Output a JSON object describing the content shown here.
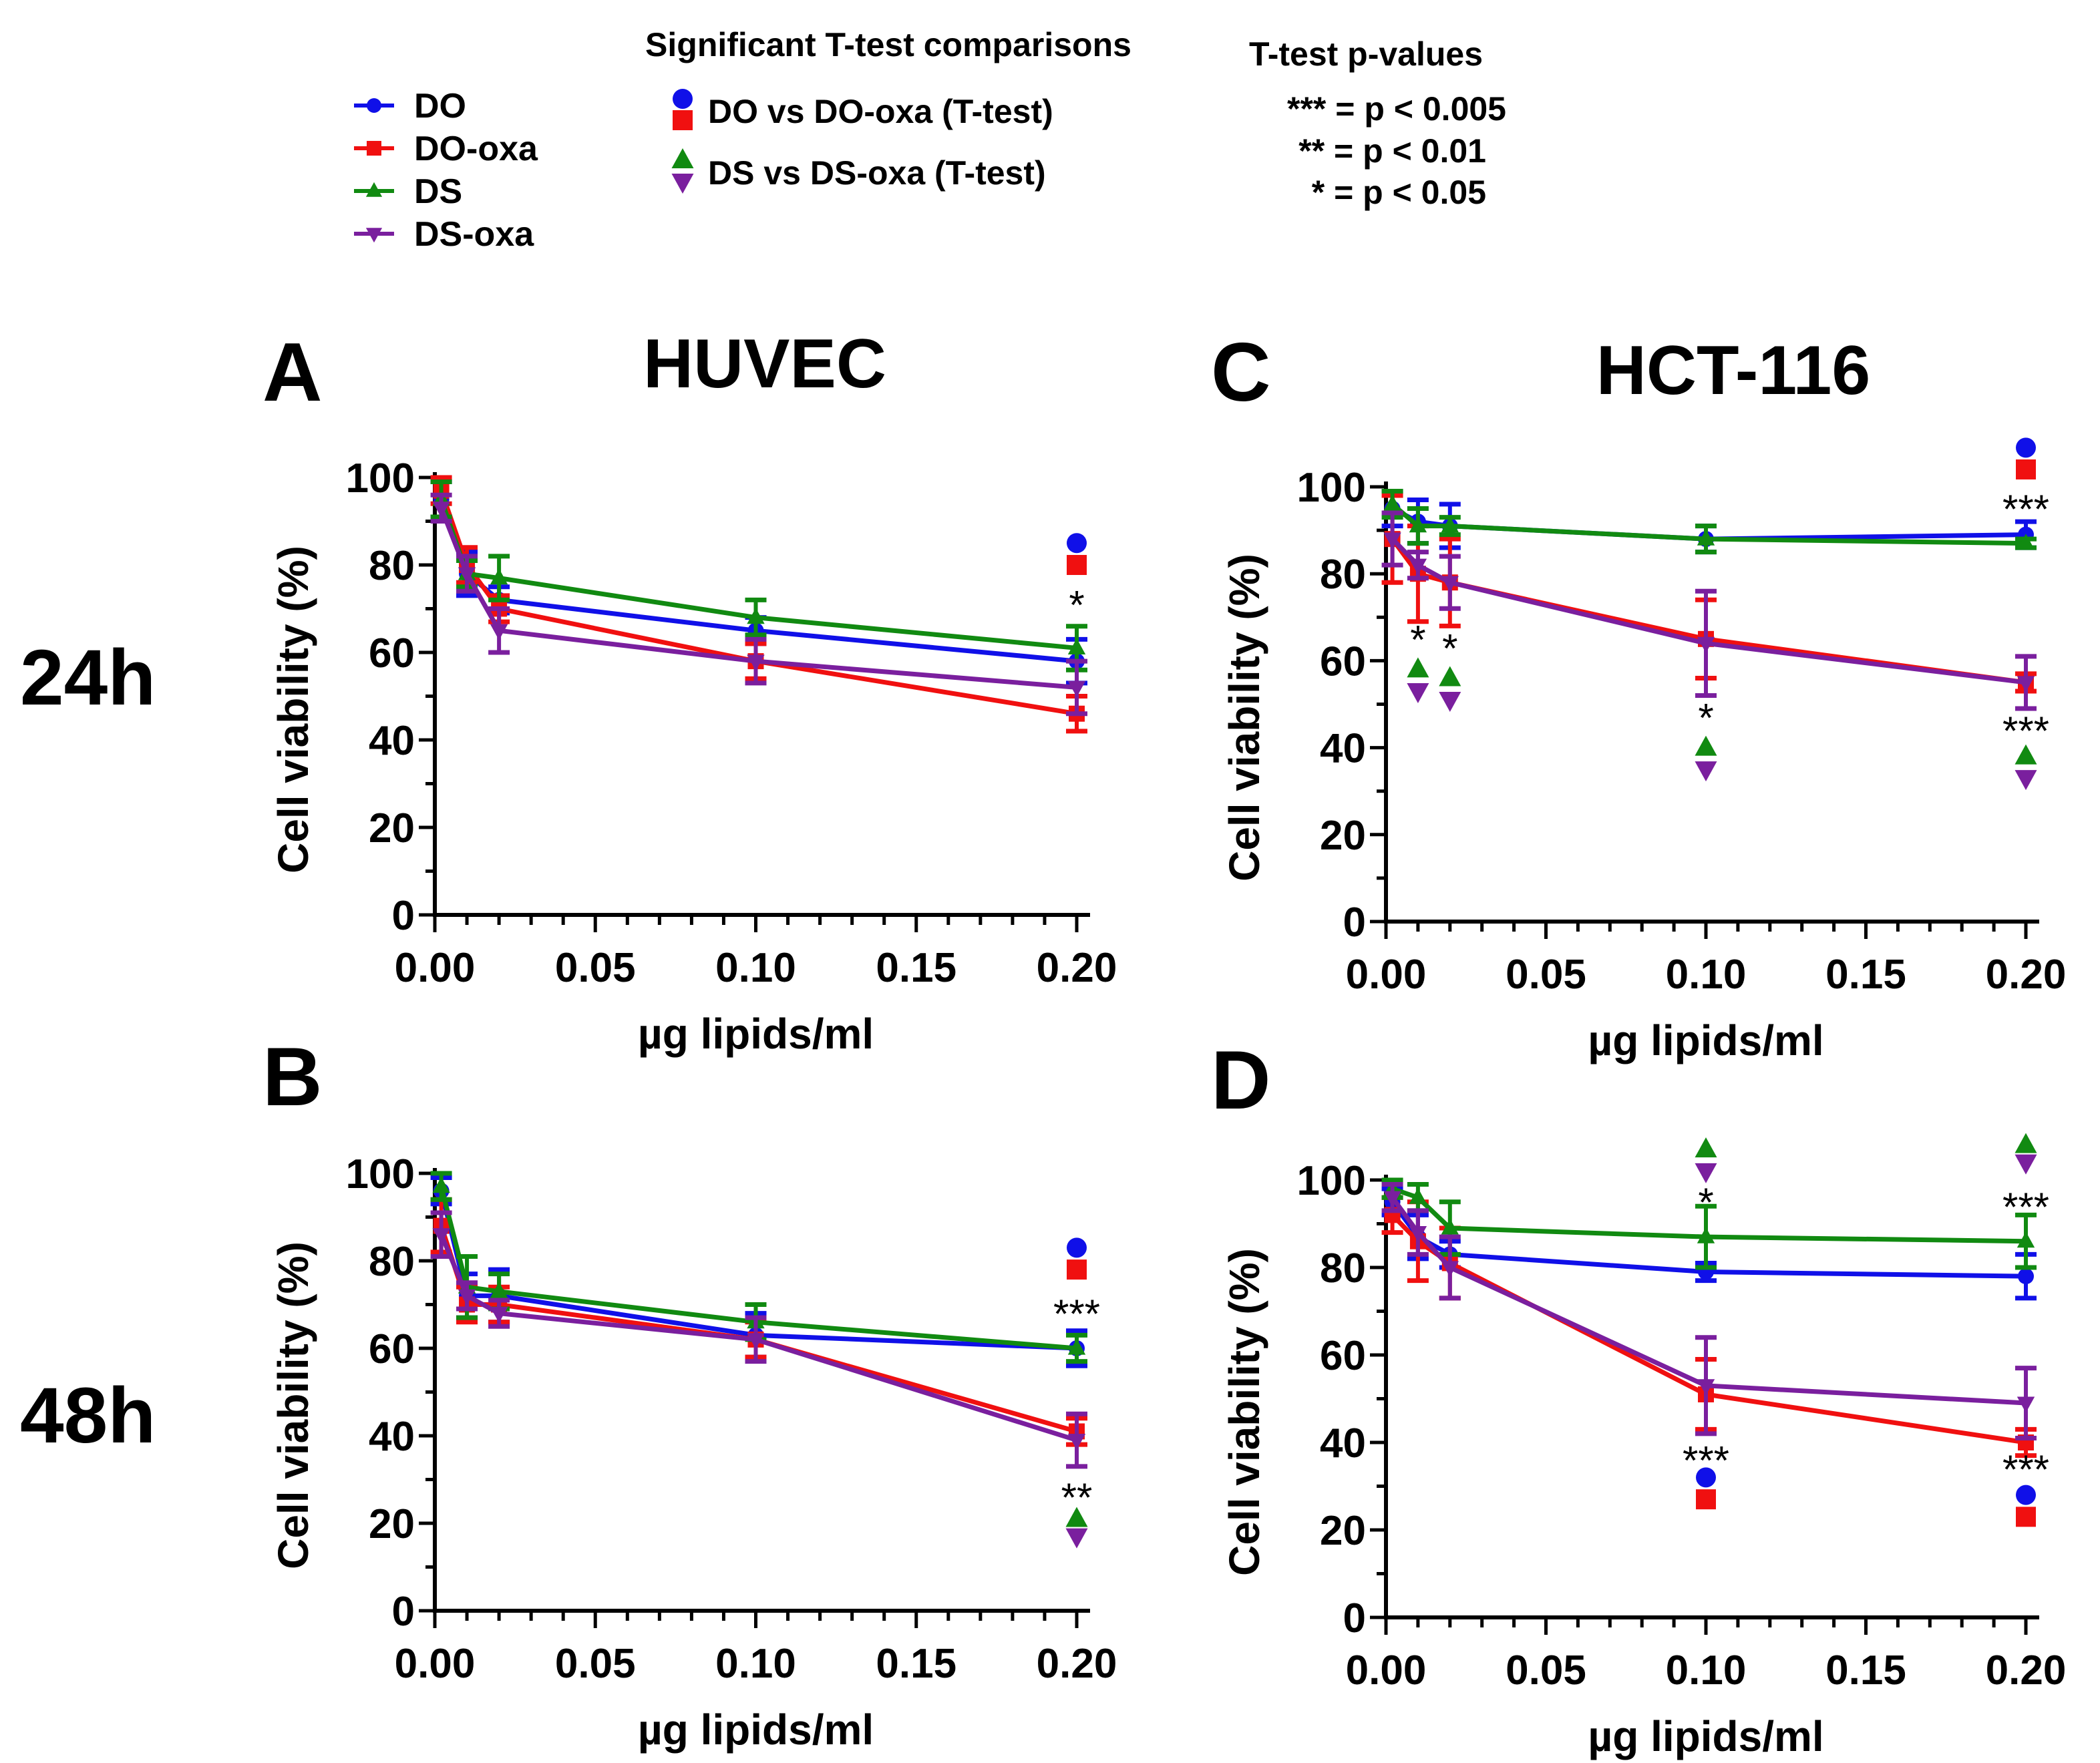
{
  "colors": {
    "DO": "#1010e8",
    "DO-oxa": "#f01010",
    "DS": "#118a11",
    "DS-oxa": "#7a1f9e"
  },
  "legend": {
    "series": [
      "DO",
      "DO-oxa",
      "DS",
      "DS-oxa"
    ],
    "comparisons_title": "Significant T-test comparisons",
    "comparisons": [
      "DO vs DO-oxa (T-test)",
      "DS vs DS-oxa (T-test)"
    ],
    "pvalues_title": "T-test p-values",
    "pvalues": [
      "*** = p < 0.005",
      "** = p < 0.01",
      "* = p < 0.05"
    ]
  },
  "columns": [
    "HUVEC",
    "HCT-116"
  ],
  "rows": [
    "24h",
    "48h"
  ],
  "chart_data": [
    {
      "panel": "A",
      "type": "line",
      "cell_line": "HUVEC",
      "time": "24h",
      "xlabel": "µg lipids/ml",
      "ylabel": "Cell viability (%)",
      "xlim": [
        0,
        0.2
      ],
      "ylim": [
        0,
        100
      ],
      "xticks": [
        "0.00",
        "0.05",
        "0.10",
        "0.15",
        "0.20"
      ],
      "yticks": [
        "0",
        "20",
        "40",
        "60",
        "80",
        "100"
      ],
      "x": [
        0.002,
        0.01,
        0.02,
        0.1,
        0.2
      ],
      "series": [
        {
          "name": "DO",
          "values": [
            95,
            78,
            72,
            65,
            58
          ],
          "err": [
            4,
            5,
            3,
            3,
            5
          ]
        },
        {
          "name": "DO-oxa",
          "values": [
            97,
            80,
            70,
            58,
            46
          ],
          "err": [
            3,
            4,
            3,
            4,
            4
          ]
        },
        {
          "name": "DS",
          "values": [
            95,
            78,
            77,
            68,
            61
          ],
          "err": [
            4,
            3,
            5,
            4,
            5
          ]
        },
        {
          "name": "DS-oxa",
          "values": [
            93,
            78,
            65,
            58,
            52
          ],
          "err": [
            3,
            4,
            5,
            5,
            6
          ]
        }
      ],
      "annotations": [
        {
          "x": 0.2,
          "y": 85,
          "marker": "circle",
          "color": "DO"
        },
        {
          "x": 0.2,
          "y": 80,
          "marker": "square",
          "color": "DO-oxa"
        },
        {
          "x": 0.2,
          "y": 72,
          "text": "*"
        }
      ]
    },
    {
      "panel": "B",
      "type": "line",
      "cell_line": "HUVEC",
      "time": "48h",
      "xlabel": "µg lipids/ml",
      "ylabel": "Cell viability (%)",
      "xlim": [
        0,
        0.2
      ],
      "ylim": [
        0,
        100
      ],
      "xticks": [
        "0.00",
        "0.05",
        "0.10",
        "0.15",
        "0.20"
      ],
      "yticks": [
        "0",
        "20",
        "40",
        "60",
        "80",
        "100"
      ],
      "x": [
        0.002,
        0.01,
        0.02,
        0.1,
        0.2
      ],
      "series": [
        {
          "name": "DO",
          "values": [
            96,
            72,
            72,
            63,
            60
          ],
          "err": [
            3,
            5,
            6,
            5,
            4
          ]
        },
        {
          "name": "DO-oxa",
          "values": [
            88,
            70,
            70,
            62,
            41
          ],
          "err": [
            6,
            4,
            4,
            4,
            3
          ]
        },
        {
          "name": "DS",
          "values": [
            97,
            74,
            73,
            66,
            60
          ],
          "err": [
            3,
            7,
            4,
            4,
            3
          ]
        },
        {
          "name": "DS-oxa",
          "values": [
            86,
            72,
            68,
            62,
            39
          ],
          "err": [
            5,
            3,
            3,
            5,
            6
          ]
        }
      ],
      "annotations": [
        {
          "x": 0.2,
          "y": 83,
          "marker": "circle",
          "color": "DO"
        },
        {
          "x": 0.2,
          "y": 78,
          "marker": "square",
          "color": "DO-oxa"
        },
        {
          "x": 0.2,
          "y": 69,
          "text": "***"
        },
        {
          "x": 0.2,
          "y": 27,
          "text": "**"
        },
        {
          "x": 0.2,
          "y": 21,
          "marker": "up",
          "color": "DS"
        },
        {
          "x": 0.2,
          "y": 17,
          "marker": "down",
          "color": "DS-oxa"
        }
      ]
    },
    {
      "panel": "C",
      "type": "line",
      "cell_line": "HCT-116",
      "time": "24h",
      "xlabel": "µg lipids/ml",
      "ylabel": "Cell viability (%)",
      "xlim": [
        0,
        0.2
      ],
      "ylim": [
        0,
        100
      ],
      "xticks": [
        "0.00",
        "0.05",
        "0.10",
        "0.15",
        "0.20"
      ],
      "yticks": [
        "0",
        "20",
        "40",
        "60",
        "80",
        "100"
      ],
      "x": [
        0.002,
        0.01,
        0.02,
        0.1,
        0.2
      ],
      "series": [
        {
          "name": "DO",
          "values": [
            95,
            92,
            91,
            88,
            89
          ],
          "err": [
            4,
            5,
            5,
            3,
            3
          ]
        },
        {
          "name": "DO-oxa",
          "values": [
            88,
            80,
            78,
            65,
            55
          ],
          "err": [
            10,
            11,
            10,
            9,
            2
          ]
        },
        {
          "name": "DS",
          "values": [
            96,
            91,
            91,
            88,
            87
          ],
          "err": [
            3,
            4,
            2,
            3,
            1
          ]
        },
        {
          "name": "DS-oxa",
          "values": [
            88,
            82,
            78,
            64,
            55
          ],
          "err": [
            6,
            3,
            6,
            12,
            6
          ]
        }
      ],
      "annotations": [
        {
          "x": 0.2,
          "y": 109,
          "marker": "circle",
          "color": "DO"
        },
        {
          "x": 0.2,
          "y": 104,
          "marker": "square",
          "color": "DO-oxa"
        },
        {
          "x": 0.2,
          "y": 96,
          "text": "***"
        },
        {
          "x": 0.01,
          "y": 66,
          "text": "*"
        },
        {
          "x": 0.01,
          "y": 58,
          "marker": "up",
          "color": "DS"
        },
        {
          "x": 0.01,
          "y": 53,
          "marker": "down",
          "color": "DS-oxa"
        },
        {
          "x": 0.02,
          "y": 64,
          "text": "*"
        },
        {
          "x": 0.02,
          "y": 56,
          "marker": "up",
          "color": "DS"
        },
        {
          "x": 0.02,
          "y": 51,
          "marker": "down",
          "color": "DS-oxa"
        },
        {
          "x": 0.1,
          "y": 48,
          "text": "*"
        },
        {
          "x": 0.1,
          "y": 40,
          "marker": "up",
          "color": "DS"
        },
        {
          "x": 0.1,
          "y": 35,
          "marker": "down",
          "color": "DS-oxa"
        },
        {
          "x": 0.2,
          "y": 45,
          "text": "***"
        },
        {
          "x": 0.2,
          "y": 38,
          "marker": "up",
          "color": "DS"
        },
        {
          "x": 0.2,
          "y": 33,
          "marker": "down",
          "color": "DS-oxa"
        }
      ]
    },
    {
      "panel": "D",
      "type": "line",
      "cell_line": "HCT-116",
      "time": "48h",
      "xlabel": "µg lipids/ml",
      "ylabel": "Cell viability (%)",
      "xlim": [
        0,
        0.2
      ],
      "ylim": [
        0,
        100
      ],
      "xticks": [
        "0.00",
        "0.05",
        "0.10",
        "0.15",
        "0.20"
      ],
      "yticks": [
        "0",
        "20",
        "40",
        "60",
        "80",
        "100"
      ],
      "x": [
        0.002,
        0.01,
        0.02,
        0.1,
        0.2
      ],
      "series": [
        {
          "name": "DO",
          "values": [
            95,
            87,
            83,
            79,
            78
          ],
          "err": [
            3,
            5,
            3,
            2,
            5
          ]
        },
        {
          "name": "DO-oxa",
          "values": [
            92,
            86,
            81,
            51,
            40
          ],
          "err": [
            4,
            9,
            8,
            8,
            3
          ]
        },
        {
          "name": "DS",
          "values": [
            98,
            96,
            89,
            87,
            86
          ],
          "err": [
            2,
            3,
            6,
            7,
            6
          ]
        },
        {
          "name": "DS-oxa",
          "values": [
            96,
            88,
            80,
            53,
            49
          ],
          "err": [
            3,
            5,
            7,
            11,
            8
          ]
        }
      ],
      "annotations": [
        {
          "x": 0.1,
          "y": 107,
          "marker": "up",
          "color": "DS"
        },
        {
          "x": 0.1,
          "y": 102,
          "marker": "down",
          "color": "DS-oxa"
        },
        {
          "x": 0.1,
          "y": 96,
          "text": "*"
        },
        {
          "x": 0.2,
          "y": 108,
          "marker": "up",
          "color": "DS"
        },
        {
          "x": 0.2,
          "y": 104,
          "marker": "down",
          "color": "DS-oxa"
        },
        {
          "x": 0.2,
          "y": 95,
          "text": "***"
        },
        {
          "x": 0.1,
          "y": 37,
          "text": "***"
        },
        {
          "x": 0.1,
          "y": 32,
          "marker": "circle",
          "color": "DO"
        },
        {
          "x": 0.1,
          "y": 27,
          "marker": "square",
          "color": "DO-oxa"
        },
        {
          "x": 0.2,
          "y": 35,
          "text": "***"
        },
        {
          "x": 0.2,
          "y": 28,
          "marker": "circle",
          "color": "DO"
        },
        {
          "x": 0.2,
          "y": 23,
          "marker": "square",
          "color": "DO-oxa"
        }
      ]
    }
  ]
}
